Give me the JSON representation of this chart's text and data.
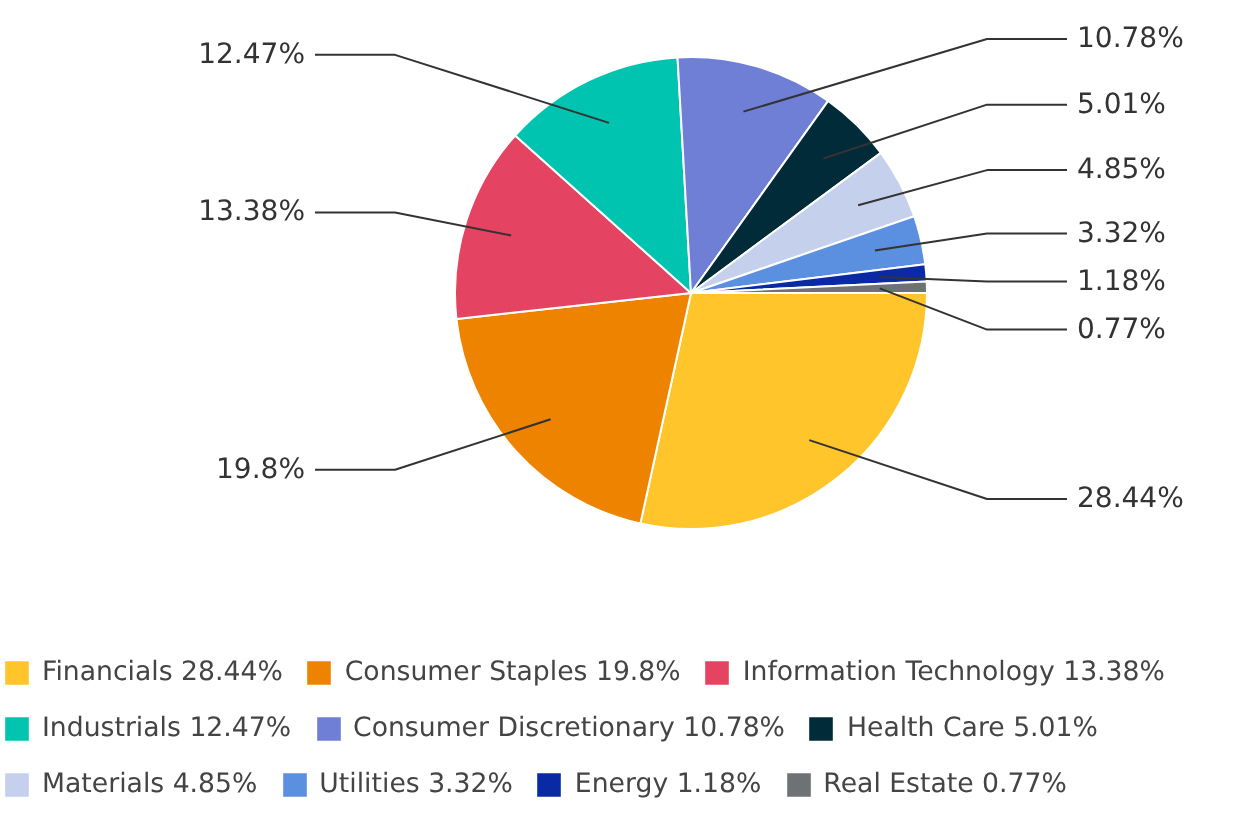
{
  "chart_data": {
    "type": "pie",
    "categories": [
      "Financials",
      "Consumer Staples",
      "Information Technology",
      "Industrials",
      "Consumer Discretionary",
      "Health Care",
      "Materials",
      "Utilities",
      "Energy",
      "Real Estate"
    ],
    "values": [
      28.44,
      19.8,
      13.38,
      12.47,
      10.78,
      5.01,
      4.85,
      3.32,
      1.18,
      0.77
    ],
    "value_labels": [
      "28.44%",
      "19.8%",
      "13.38%",
      "12.47%",
      "10.78%",
      "5.01%",
      "4.85%",
      "3.32%",
      "1.18%",
      "0.77%"
    ],
    "colors": [
      "#ffc52a",
      "#ee8300",
      "#e44462",
      "#00c3b0",
      "#6f7fd6",
      "#022b3a",
      "#c5d0ec",
      "#5b8fe0",
      "#0a2aa5",
      "#6e7274"
    ],
    "legend": "bottom"
  }
}
